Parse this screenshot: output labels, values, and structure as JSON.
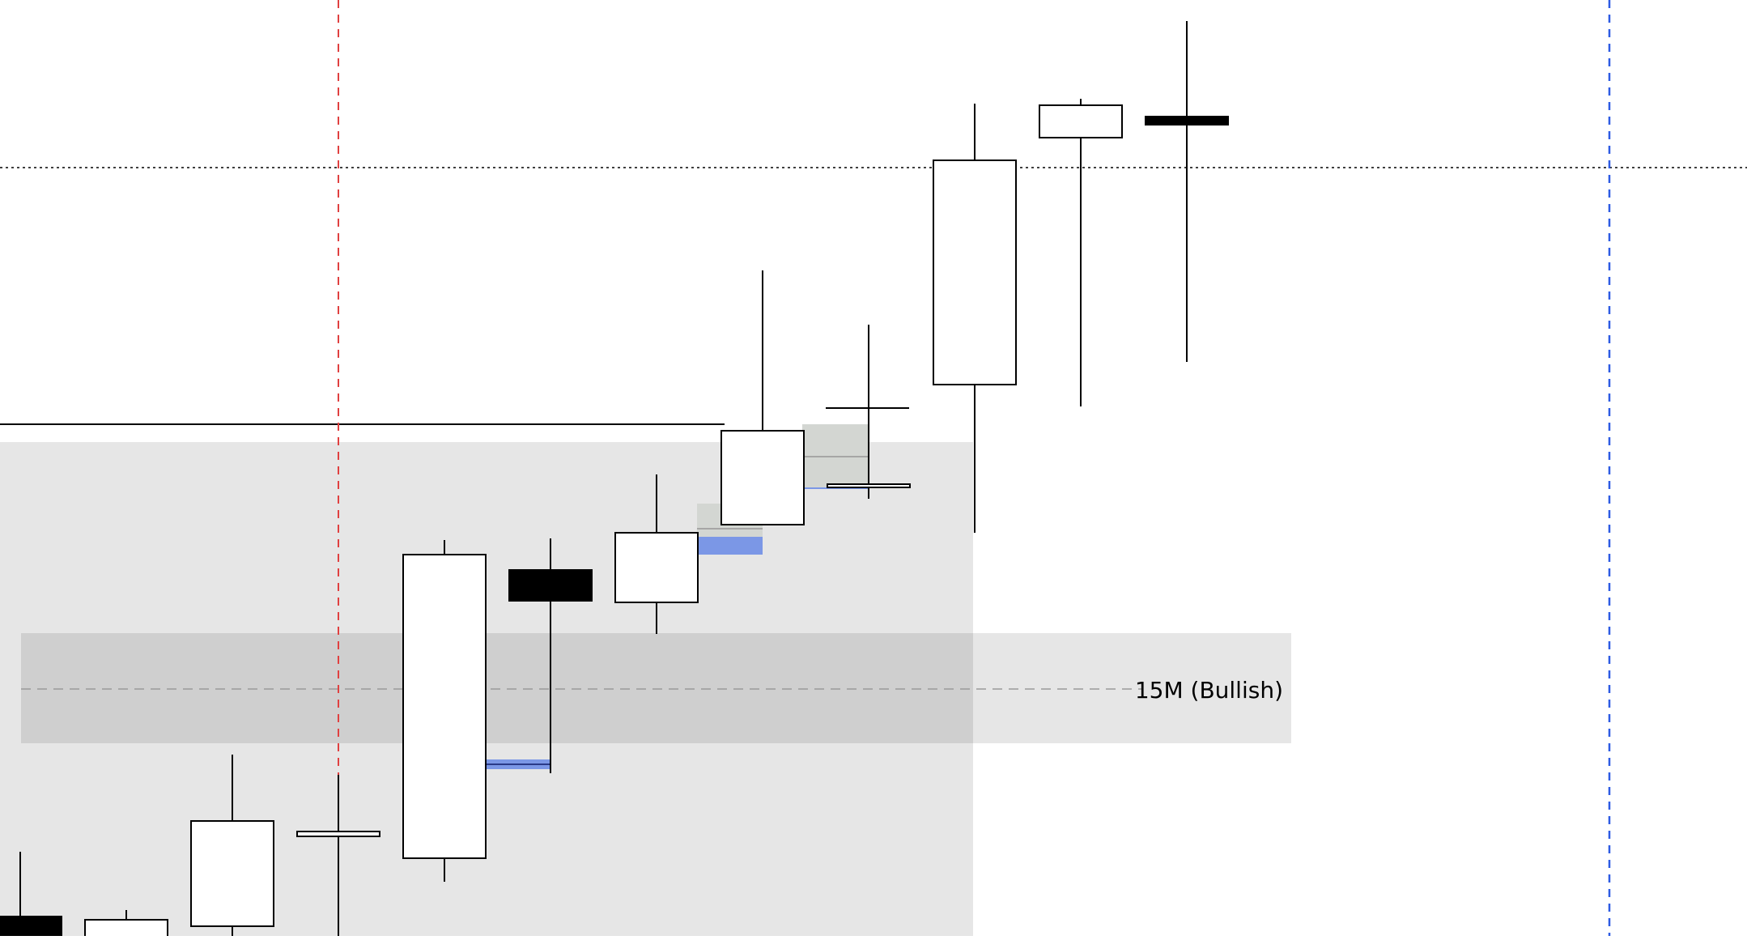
{
  "chart_data": {
    "type": "candlestick",
    "zone_label": "15M (Bullish)",
    "colors": {
      "bull_fill": "#ffffff",
      "bear_fill": "#000000",
      "wick": "#000000",
      "session_line": "#e04040",
      "future_line": "#2d5be3",
      "zone_label": "#8e2fa3",
      "zone_fill": "#cfcfcf",
      "range_fill": "#e6e6e6",
      "gap_fill": "#7b97e6",
      "fvg_fill": "#d3d6d2"
    },
    "candles": [
      {
        "open": 24.0,
        "high": 104.0,
        "low": -12.0,
        "close": -12.0
      },
      {
        "open": -12.0,
        "high": 32.0,
        "low": -12.0,
        "close": 20.0
      },
      {
        "open": 12.0,
        "high": 224.0,
        "low": -12.0,
        "close": 142.0
      },
      {
        "open": 123.0,
        "high": 199.0,
        "low": -12.0,
        "close": 129.0
      },
      {
        "open": 96.0,
        "high": 489.0,
        "low": 67.0,
        "close": 471.0
      },
      {
        "open": 452.0,
        "high": 491.0,
        "low": 201.0,
        "close": 414.0
      },
      {
        "open": 412.0,
        "high": 570.0,
        "low": 373.0,
        "close": 498.0
      },
      {
        "open": 508.0,
        "high": 822.0,
        "low": 508.0,
        "close": 624.0
      },
      {
        "open": 558.0,
        "high": 755.0,
        "low": 540.0,
        "close": 558.0
      },
      {
        "open": 681.0,
        "high": 1028.0,
        "low": 498.0,
        "close": 958.0
      },
      {
        "open": 986.0,
        "high": 1034.0,
        "low": 654.0,
        "close": 1026.0
      },
      {
        "open": 1012.0,
        "high": 1130.0,
        "low": 709.0,
        "close": 1002.0
      }
    ]
  }
}
